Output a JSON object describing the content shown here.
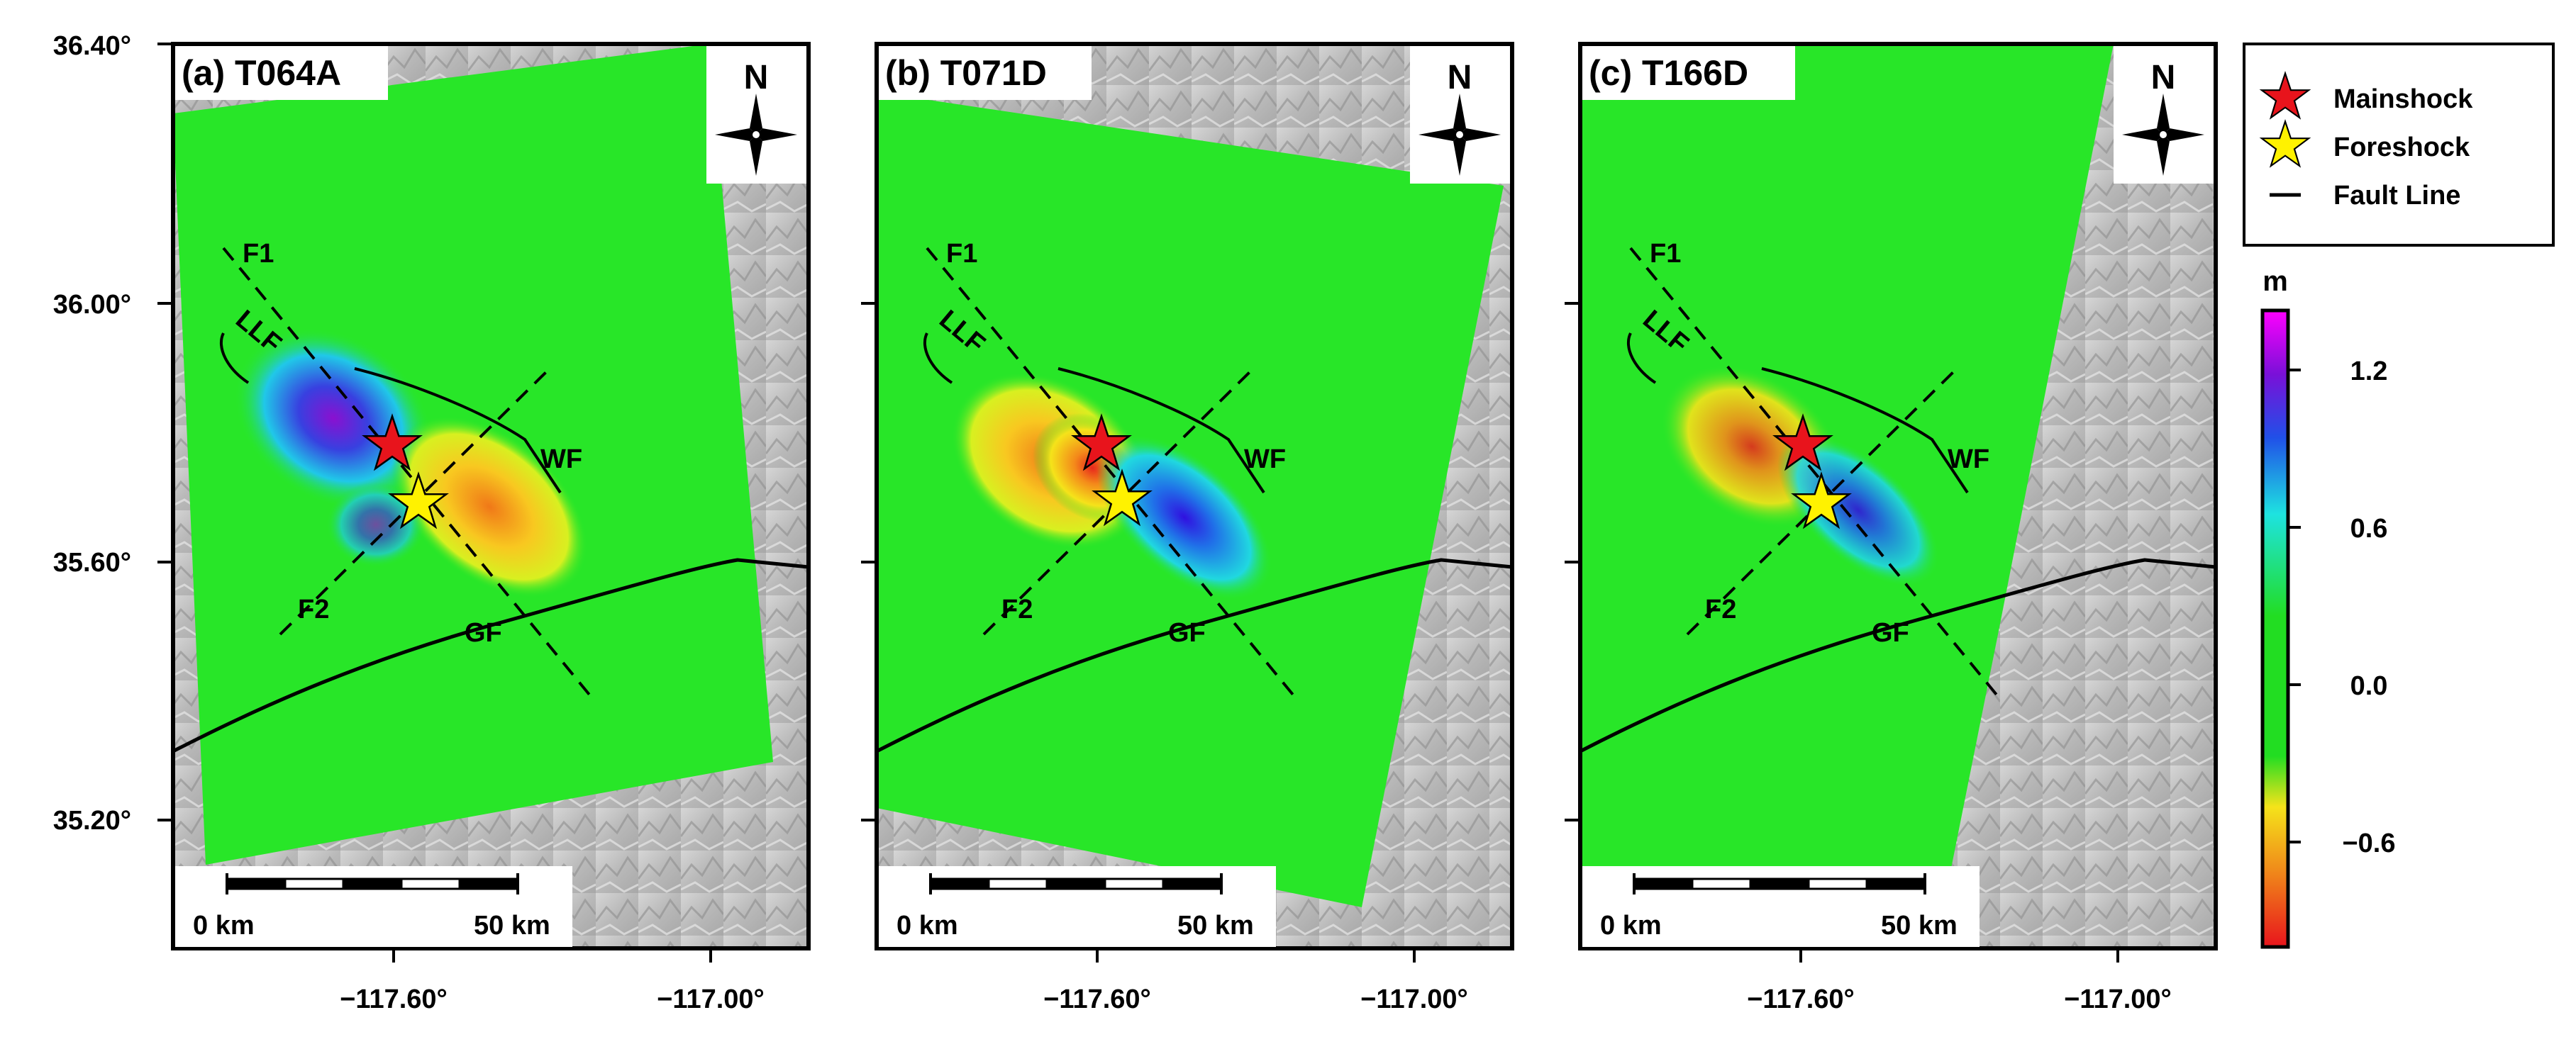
{
  "axes": {
    "y_ticks": [
      "36.40°",
      "36.00°",
      "35.60°",
      "35.20°"
    ],
    "x_ticks": [
      "−117.60°",
      "−117.00°"
    ]
  },
  "panels": [
    {
      "id": "a",
      "title": "(a) T064A"
    },
    {
      "id": "b",
      "title": "(b) T071D"
    },
    {
      "id": "c",
      "title": "(c) T166D"
    }
  ],
  "map_labels": {
    "f1": "F1",
    "f2": "F2",
    "llf": "LLF",
    "wf": "WF",
    "gf": "GF"
  },
  "north_label": "N",
  "scalebar": {
    "left": "0 km",
    "right": "50 km"
  },
  "legend": {
    "items": [
      {
        "label": "Mainshock",
        "color": "#e8141c"
      },
      {
        "label": "Foreshock",
        "color": "#fff200"
      },
      {
        "label": "Fault Line",
        "color": "#000000"
      }
    ]
  },
  "colorbar": {
    "unit": "m",
    "ticks": [
      "1.2",
      "0.6",
      "0.0",
      "−0.6"
    ],
    "range": [
      -0.9,
      1.4
    ],
    "colors": [
      "#e8141c",
      "#f08a1a",
      "#f5e31a",
      "#22dd22",
      "#1ee3e0",
      "#2050e8",
      "#7a10d8",
      "#ff00ff"
    ]
  },
  "colors": {
    "background_green": "#28e628",
    "hillshade": "#bdbdbd"
  }
}
